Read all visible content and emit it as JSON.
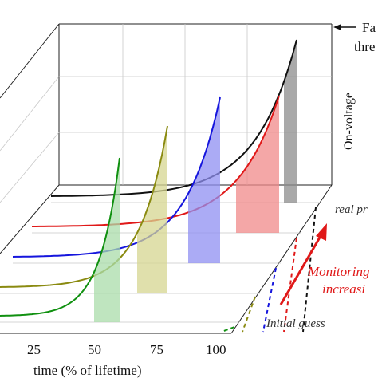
{
  "chart_data": {
    "type": "line",
    "xlabel": "time (% of lifetime)",
    "ylabel": "On-voltage",
    "x_ticks": [
      "25",
      "50",
      "75",
      "100"
    ],
    "threshold_label_line1": "Fa",
    "threshold_label_line2": "thre",
    "depth_labels": {
      "back": "real pr",
      "front": "Initial guess",
      "arrow_line1": "Monitoring",
      "arrow_line2": "increasi"
    },
    "colors": {
      "black": "#111111",
      "red": "#e01818",
      "blue": "#1515dd",
      "olive": "#8a8a10",
      "green": "#109010",
      "arrow": "#e01818"
    },
    "series": [
      {
        "color": "#111111",
        "fill": "#8c8c8c",
        "predicted_failure_pct": 100
      },
      {
        "color": "#e01818",
        "fill": "#f08a8a",
        "predicted_failure_pct": 100
      },
      {
        "color": "#1515dd",
        "fill": "#8f8ff2",
        "predicted_failure_pct": 88
      },
      {
        "color": "#8a8a10",
        "fill": "#d6d690",
        "predicted_failure_pct": 73
      },
      {
        "color": "#109010",
        "fill": "#a9dca9",
        "predicted_failure_pct": 58
      }
    ]
  }
}
